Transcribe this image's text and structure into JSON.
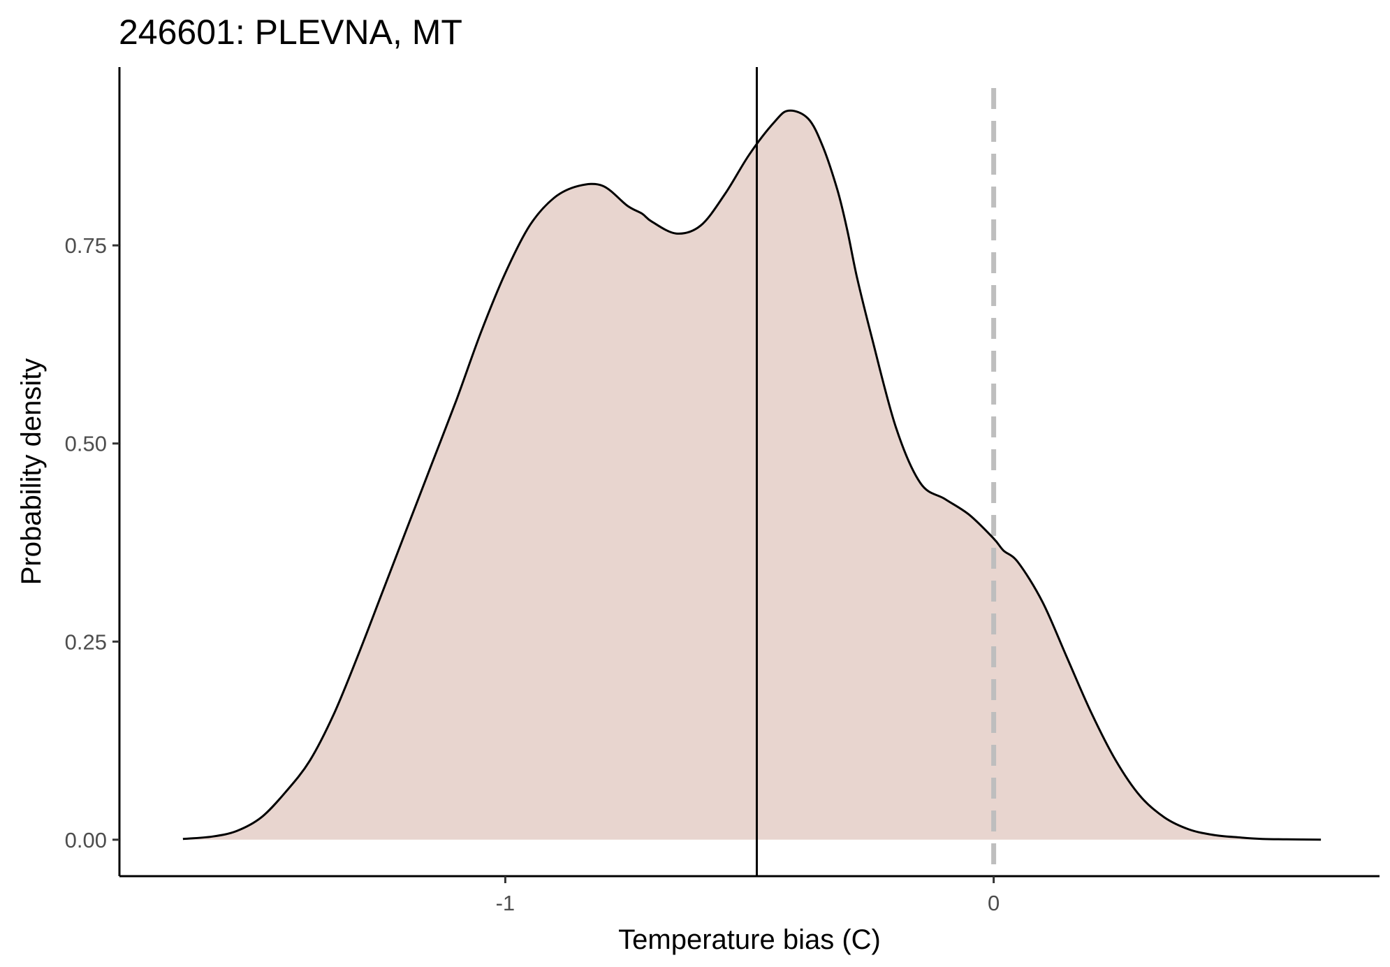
{
  "chart_data": {
    "type": "area",
    "title": "246601: PLEVNA, MT",
    "xlabel": "Temperature bias (C)",
    "ylabel": "Probability density",
    "xlim": [
      -1.79,
      0.79
    ],
    "ylim": [
      -0.046,
      0.975
    ],
    "x_ticks": [
      {
        "value": -1,
        "label": "-1"
      },
      {
        "value": 0,
        "label": "0"
      }
    ],
    "y_ticks": [
      {
        "value": 0.0,
        "label": "0.00"
      },
      {
        "value": 0.25,
        "label": "0.25"
      },
      {
        "value": 0.5,
        "label": "0.50"
      },
      {
        "value": 0.75,
        "label": "0.75"
      }
    ],
    "grid": false,
    "legend": "none",
    "density_fill_color": "#e8d5cf",
    "series": [
      {
        "x": [
          -1.66,
          -1.6,
          -1.55,
          -1.5,
          -1.45,
          -1.4,
          -1.35,
          -1.3,
          -1.25,
          -1.2,
          -1.15,
          -1.1,
          -1.05,
          -1.0,
          -0.95,
          -0.9,
          -0.85,
          -0.8,
          -0.75,
          -0.72,
          -0.7,
          -0.65,
          -0.6,
          -0.55,
          -0.5,
          -0.45,
          -0.42,
          -0.38,
          -0.35,
          -0.32,
          -0.3,
          -0.28,
          -0.25,
          -0.2,
          -0.15,
          -0.1,
          -0.05,
          0.0,
          0.02,
          0.05,
          0.1,
          0.15,
          0.2,
          0.25,
          0.3,
          0.35,
          0.4,
          0.45,
          0.5,
          0.55,
          0.6,
          0.67
        ],
        "y": [
          0.001,
          0.004,
          0.011,
          0.028,
          0.06,
          0.1,
          0.16,
          0.235,
          0.315,
          0.395,
          0.475,
          0.555,
          0.64,
          0.715,
          0.775,
          0.81,
          0.825,
          0.825,
          0.8,
          0.79,
          0.78,
          0.765,
          0.775,
          0.815,
          0.865,
          0.905,
          0.92,
          0.91,
          0.875,
          0.82,
          0.77,
          0.71,
          0.635,
          0.52,
          0.45,
          0.43,
          0.41,
          0.38,
          0.365,
          0.35,
          0.3,
          0.23,
          0.16,
          0.1,
          0.055,
          0.028,
          0.013,
          0.006,
          0.003,
          0.001,
          0.0005,
          0.0
        ]
      }
    ],
    "reference_lines": [
      {
        "orientation": "vertical",
        "x": -0.485,
        "style": "solid",
        "color": "#000000"
      },
      {
        "orientation": "vertical",
        "x": 0.0,
        "style": "dashed",
        "color": "#bebebe"
      }
    ]
  }
}
